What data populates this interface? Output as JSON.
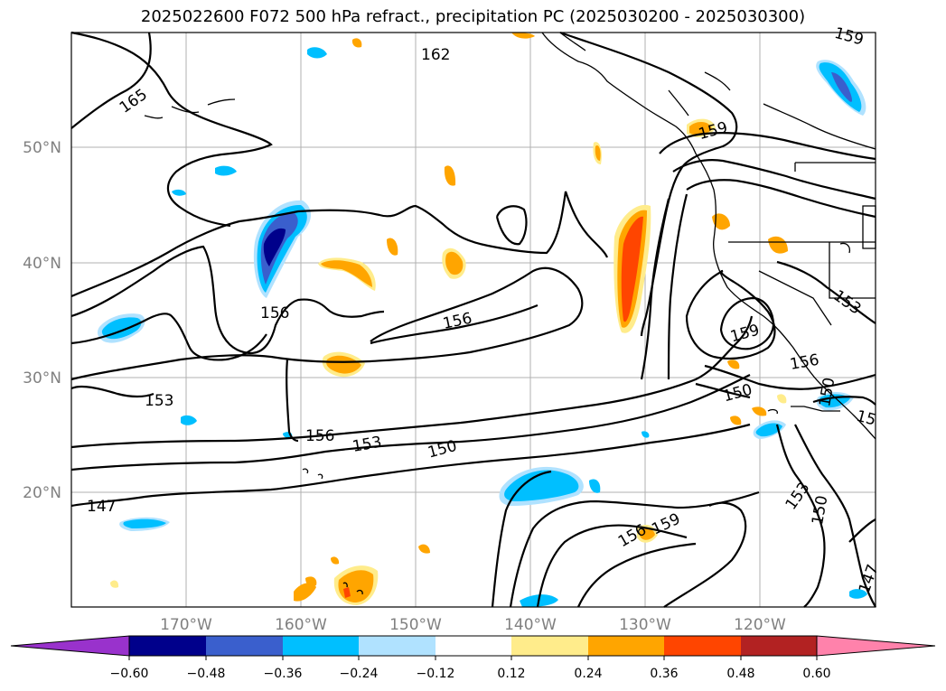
{
  "title": "2025022600 F072 500 hPa refract., precipitation PC (2025030200 - 2025030300)",
  "lat_labels": [
    "50°N",
    "40°N",
    "30°N",
    "20°N"
  ],
  "lon_labels": [
    "170°W",
    "160°W",
    "150°W",
    "140°W",
    "130°W",
    "120°W"
  ],
  "contour_labels": [
    "165",
    "162",
    "159",
    "159",
    "156",
    "156",
    "153",
    "156",
    "153",
    "150",
    "147",
    "159",
    "156",
    "150",
    "153",
    "150",
    "153",
    "150",
    "156",
    "159",
    "147",
    "15"
  ],
  "colorbar": {
    "ticks": [
      "−0.60",
      "−0.48",
      "−0.36",
      "−0.24",
      "−0.12",
      "0.12",
      "0.24",
      "0.36",
      "0.48",
      "0.60"
    ],
    "colors": [
      "#9932cc",
      "#00008b",
      "#3a5fcd",
      "#00bfff",
      "#b0e2ff",
      "#ffffff",
      "#ffec8b",
      "#ffa500",
      "#ff4500",
      "#b22222",
      "#ff82ab"
    ]
  },
  "map_extent": {
    "lon_min": -180,
    "lon_max": -110,
    "lat_min": 10,
    "lat_max": 60
  }
}
